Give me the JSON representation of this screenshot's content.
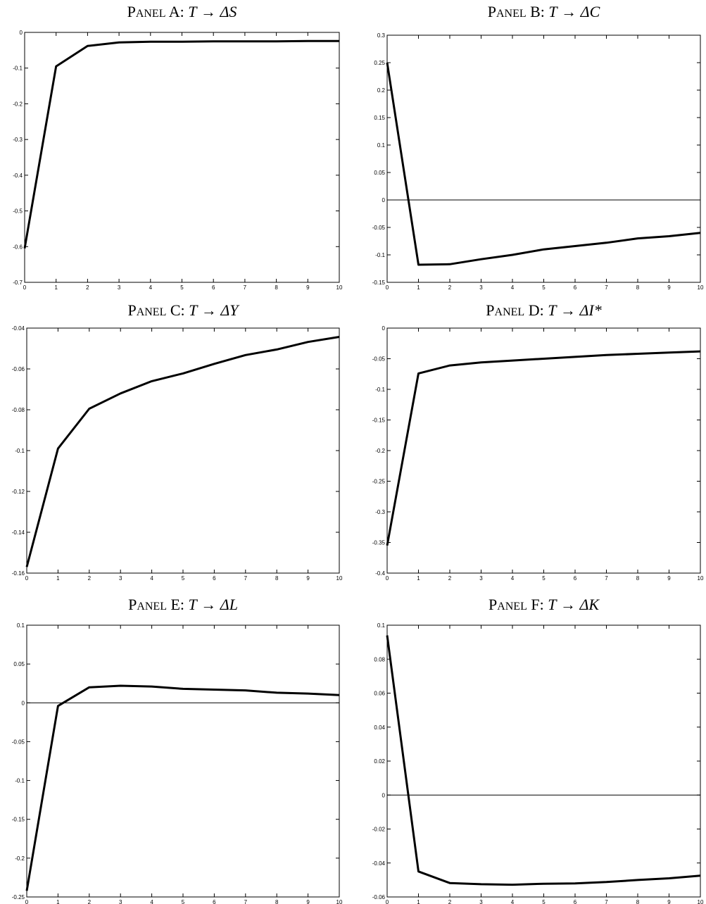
{
  "chart_data": [
    {
      "type": "line",
      "title": "Panel A: T → ΔS",
      "title_parts": {
        "prefix": "P",
        "caps": "ANEL",
        "letter": " A: ",
        "math_from": "T",
        "arrow": "→",
        "math_to": "ΔS"
      },
      "x": [
        0,
        1,
        2,
        3,
        4,
        5,
        6,
        7,
        8,
        9,
        10
      ],
      "series": [
        {
          "values": [
            -0.605,
            -0.095,
            -0.038,
            -0.028,
            -0.026,
            -0.026,
            -0.025,
            -0.025,
            -0.025,
            -0.024,
            -0.024
          ]
        }
      ],
      "xlim": [
        0,
        10
      ],
      "ylim": [
        -0.7,
        0
      ],
      "xticks": [
        "0",
        "1",
        "2",
        "3",
        "4",
        "5",
        "6",
        "7",
        "8",
        "9",
        "10"
      ],
      "yticks": [
        "0",
        "-0.1",
        "-0.2",
        "-0.3",
        "-0.4",
        "-0.5",
        "-0.6",
        "-0.7"
      ],
      "ytick_values": [
        0,
        -0.1,
        -0.2,
        -0.3,
        -0.4,
        -0.5,
        -0.6,
        -0.7
      ],
      "zero_line": false
    },
    {
      "type": "line",
      "title": "Panel B: T → ΔC",
      "title_parts": {
        "prefix": "P",
        "caps": "ANEL",
        "letter": " B: ",
        "math_from": "T",
        "arrow": "→",
        "math_to": "ΔC"
      },
      "x": [
        0,
        1,
        2,
        3,
        4,
        5,
        6,
        7,
        8,
        9,
        10
      ],
      "series": [
        {
          "values": [
            0.25,
            -0.118,
            -0.117,
            -0.108,
            -0.1,
            -0.09,
            -0.084,
            -0.078,
            -0.07,
            -0.066,
            -0.06
          ]
        }
      ],
      "xlim": [
        0,
        10
      ],
      "ylim": [
        -0.15,
        0.3
      ],
      "xticks": [
        "0",
        "1",
        "2",
        "3",
        "4",
        "5",
        "6",
        "7",
        "8",
        "9",
        "10"
      ],
      "yticks": [
        "0.3",
        "0.25",
        "0.2",
        "0.15",
        "0.1",
        "0.05",
        "0",
        "-0.05",
        "-0.1",
        "-0.15"
      ],
      "ytick_values": [
        0.3,
        0.25,
        0.2,
        0.15,
        0.1,
        0.05,
        0,
        -0.05,
        -0.1,
        -0.15
      ],
      "zero_line": true
    },
    {
      "type": "line",
      "title": "Panel C: T → ΔY",
      "title_parts": {
        "prefix": "P",
        "caps": "ANEL",
        "letter": " C: ",
        "math_from": "T",
        "arrow": "→",
        "math_to": "ΔY"
      },
      "x": [
        0,
        1,
        2,
        3,
        4,
        5,
        6,
        7,
        8,
        9,
        10
      ],
      "series": [
        {
          "values": [
            -0.157,
            -0.099,
            -0.0795,
            -0.072,
            -0.066,
            -0.0622,
            -0.0575,
            -0.0532,
            -0.0505,
            -0.0468,
            -0.0443
          ]
        }
      ],
      "xlim": [
        0,
        10
      ],
      "ylim": [
        -0.16,
        -0.04
      ],
      "xticks": [
        "0",
        "1",
        "2",
        "3",
        "4",
        "5",
        "6",
        "7",
        "8",
        "9",
        "10"
      ],
      "yticks": [
        "-0.04",
        "-0.06",
        "-0.08",
        "-0.1",
        "-0.12",
        "-0.14",
        "-0.16"
      ],
      "ytick_values": [
        -0.04,
        -0.06,
        -0.08,
        -0.1,
        -0.12,
        -0.14,
        -0.16
      ],
      "zero_line": false
    },
    {
      "type": "line",
      "title": "Panel D: T → ΔI*",
      "title_parts": {
        "prefix": "P",
        "caps": "ANEL",
        "letter": " D: ",
        "math_from": "T",
        "arrow": "→",
        "math_to": "ΔI*"
      },
      "x": [
        0,
        1,
        2,
        3,
        4,
        5,
        6,
        7,
        8,
        9,
        10
      ],
      "series": [
        {
          "values": [
            -0.355,
            -0.074,
            -0.061,
            -0.056,
            -0.053,
            -0.05,
            -0.047,
            -0.044,
            -0.042,
            -0.04,
            -0.038
          ]
        }
      ],
      "xlim": [
        0,
        10
      ],
      "ylim": [
        -0.4,
        0
      ],
      "xticks": [
        "0",
        "1",
        "2",
        "3",
        "4",
        "5",
        "6",
        "7",
        "8",
        "9",
        "10"
      ],
      "yticks": [
        "0",
        "-0.05",
        "-0.1",
        "-0.15",
        "-0.2",
        "-0.25",
        "-0.3",
        "-0.35",
        "-0.4"
      ],
      "ytick_values": [
        0,
        -0.05,
        -0.1,
        -0.15,
        -0.2,
        -0.25,
        -0.3,
        -0.35,
        -0.4
      ],
      "zero_line": false
    },
    {
      "type": "line",
      "title": "Panel E: T → ΔL",
      "title_parts": {
        "prefix": "P",
        "caps": "ANEL",
        "letter": " E: ",
        "math_from": "T",
        "arrow": "→",
        "math_to": "ΔL"
      },
      "x": [
        0,
        1,
        2,
        3,
        4,
        5,
        6,
        7,
        8,
        9,
        10
      ],
      "series": [
        {
          "values": [
            -0.242,
            -0.004,
            0.02,
            0.022,
            0.021,
            0.018,
            0.017,
            0.016,
            0.013,
            0.012,
            0.01
          ]
        }
      ],
      "xlim": [
        0,
        10
      ],
      "ylim": [
        -0.25,
        0.1
      ],
      "xticks": [
        "0",
        "1",
        "2",
        "3",
        "4",
        "5",
        "6",
        "7",
        "8",
        "9",
        "10"
      ],
      "yticks": [
        "0.1",
        "0.05",
        "0",
        "-0.05",
        "-0.1",
        "-0.15",
        "-0.2",
        "-0.25"
      ],
      "ytick_values": [
        0.1,
        0.05,
        0,
        -0.05,
        -0.1,
        -0.15,
        -0.2,
        -0.25
      ],
      "zero_line": true
    },
    {
      "type": "line",
      "title": "Panel F: T → ΔK",
      "title_parts": {
        "prefix": "P",
        "caps": "ANEL",
        "letter": " F: ",
        "math_from": "T",
        "arrow": "→",
        "math_to": "ΔK"
      },
      "x": [
        0,
        1,
        2,
        3,
        4,
        5,
        6,
        7,
        8,
        9,
        10
      ],
      "series": [
        {
          "values": [
            0.094,
            -0.045,
            -0.0518,
            -0.0525,
            -0.0528,
            -0.0522,
            -0.052,
            -0.0512,
            -0.05,
            -0.049,
            -0.0475
          ]
        }
      ],
      "xlim": [
        0,
        10
      ],
      "ylim": [
        -0.06,
        0.1
      ],
      "xticks": [
        "0",
        "1",
        "2",
        "3",
        "4",
        "5",
        "6",
        "7",
        "8",
        "9",
        "10"
      ],
      "yticks": [
        "0.1",
        "0.08",
        "0.06",
        "0.04",
        "0.02",
        "0",
        "-0.02",
        "-0.04",
        "-0.06"
      ],
      "ytick_values": [
        0.1,
        0.08,
        0.06,
        0.04,
        0.02,
        0,
        -0.02,
        -0.04,
        -0.06
      ],
      "zero_line": true
    }
  ]
}
